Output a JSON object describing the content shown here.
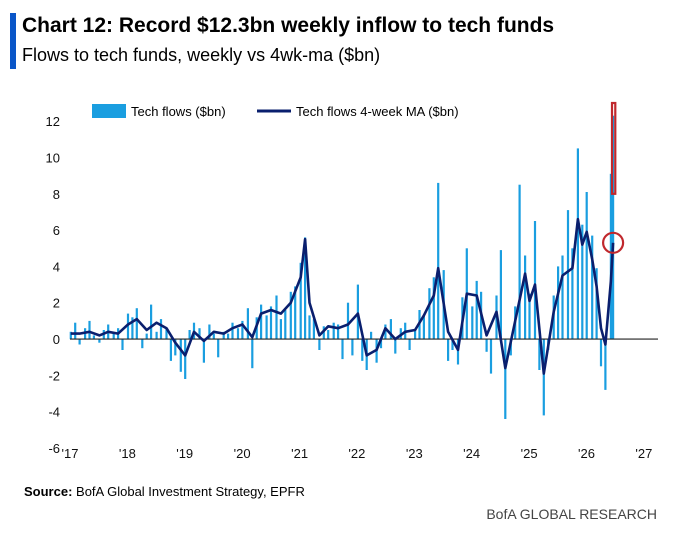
{
  "header": {
    "title": "Chart 12: Record $12.3bn weekly inflow to tech funds",
    "subtitle": "Flows to tech funds, weekly vs 4wk-ma ($bn)"
  },
  "footer": {
    "source_label": "Source:",
    "source_text": "BofA Global Investment Strategy, EPFR",
    "brand": "BofA GLOBAL RESEARCH"
  },
  "colors": {
    "bars": "#1a9ee0",
    "ma_line": "#0a1f6e",
    "highlight": "#c0282d",
    "accent": "#0a56c8"
  },
  "chart_data": {
    "type": "bar",
    "series": [
      {
        "name": "Tech flows ($bn)",
        "type": "bar",
        "points": [
          [
            "2017-01-06",
            0.4
          ],
          [
            "2017-02-03",
            0.9
          ],
          [
            "2017-03-03",
            -0.3
          ],
          [
            "2017-04-07",
            0.6
          ],
          [
            "2017-05-05",
            1.0
          ],
          [
            "2017-06-02",
            0.2
          ],
          [
            "2017-07-07",
            -0.2
          ],
          [
            "2017-08-04",
            0.5
          ],
          [
            "2017-09-01",
            0.8
          ],
          [
            "2017-10-06",
            0.3
          ],
          [
            "2017-11-03",
            0.6
          ],
          [
            "2017-12-01",
            -0.6
          ],
          [
            "2018-01-05",
            1.4
          ],
          [
            "2018-02-02",
            1.2
          ],
          [
            "2018-03-02",
            1.7
          ],
          [
            "2018-04-06",
            -0.5
          ],
          [
            "2018-05-04",
            0.3
          ],
          [
            "2018-06-01",
            1.9
          ],
          [
            "2018-07-06",
            0.4
          ],
          [
            "2018-08-03",
            1.1
          ],
          [
            "2018-09-07",
            0.6
          ],
          [
            "2018-10-05",
            -1.2
          ],
          [
            "2018-11-02",
            -0.9
          ],
          [
            "2018-12-07",
            -1.8
          ],
          [
            "2019-01-04",
            -2.2
          ],
          [
            "2019-02-01",
            0.5
          ],
          [
            "2019-03-01",
            0.9
          ],
          [
            "2019-04-05",
            0.6
          ],
          [
            "2019-05-03",
            -1.3
          ],
          [
            "2019-06-07",
            0.8
          ],
          [
            "2019-07-05",
            0.3
          ],
          [
            "2019-08-02",
            -1.0
          ],
          [
            "2019-09-06",
            0.4
          ],
          [
            "2019-10-04",
            0.3
          ],
          [
            "2019-11-01",
            0.9
          ],
          [
            "2019-12-06",
            0.6
          ],
          [
            "2020-01-03",
            1.0
          ],
          [
            "2020-02-07",
            1.7
          ],
          [
            "2020-03-06",
            -1.6
          ],
          [
            "2020-04-03",
            1.2
          ],
          [
            "2020-05-01",
            1.9
          ],
          [
            "2020-06-05",
            1.3
          ],
          [
            "2020-07-03",
            1.8
          ],
          [
            "2020-08-07",
            2.4
          ],
          [
            "2020-09-04",
            1.1
          ],
          [
            "2020-10-02",
            1.6
          ],
          [
            "2020-11-06",
            2.6
          ],
          [
            "2020-12-04",
            2.9
          ],
          [
            "2021-01-08",
            4.2
          ],
          [
            "2021-02-05",
            5.6
          ],
          [
            "2021-03-05",
            1.3
          ],
          [
            "2021-04-02",
            1.1
          ],
          [
            "2021-05-07",
            -0.6
          ],
          [
            "2021-06-04",
            0.7
          ],
          [
            "2021-07-02",
            0.5
          ],
          [
            "2021-08-06",
            0.9
          ],
          [
            "2021-09-03",
            0.8
          ],
          [
            "2021-10-01",
            -1.1
          ],
          [
            "2021-11-05",
            2.0
          ],
          [
            "2021-12-03",
            -0.9
          ],
          [
            "2022-01-07",
            3.0
          ],
          [
            "2022-02-04",
            -1.2
          ],
          [
            "2022-03-04",
            -1.7
          ],
          [
            "2022-04-01",
            0.4
          ],
          [
            "2022-05-06",
            -1.3
          ],
          [
            "2022-06-03",
            -0.5
          ],
          [
            "2022-07-01",
            0.8
          ],
          [
            "2022-08-05",
            1.1
          ],
          [
            "2022-09-02",
            -0.8
          ],
          [
            "2022-10-07",
            0.6
          ],
          [
            "2022-11-04",
            0.9
          ],
          [
            "2022-12-02",
            -0.6
          ],
          [
            "2023-01-06",
            0.5
          ],
          [
            "2023-02-03",
            1.6
          ],
          [
            "2023-03-03",
            1.3
          ],
          [
            "2023-04-07",
            2.8
          ],
          [
            "2023-05-05",
            3.4
          ],
          [
            "2023-06-02",
            8.6
          ],
          [
            "2023-07-07",
            3.8
          ],
          [
            "2023-08-04",
            -1.2
          ],
          [
            "2023-09-01",
            -0.6
          ],
          [
            "2023-10-06",
            -1.4
          ],
          [
            "2023-11-03",
            2.3
          ],
          [
            "2023-12-01",
            5.0
          ],
          [
            "2024-01-05",
            1.8
          ],
          [
            "2024-02-02",
            3.2
          ],
          [
            "2024-03-01",
            2.6
          ],
          [
            "2024-04-05",
            -0.7
          ],
          [
            "2024-05-03",
            -1.9
          ],
          [
            "2024-06-07",
            2.4
          ],
          [
            "2024-07-05",
            4.9
          ],
          [
            "2024-08-02",
            -4.4
          ],
          [
            "2024-09-06",
            -0.9
          ],
          [
            "2024-10-04",
            1.8
          ],
          [
            "2024-11-01",
            8.5
          ],
          [
            "2024-12-06",
            4.6
          ],
          [
            "2025-01-03",
            2.5
          ],
          [
            "2025-02-07",
            6.5
          ],
          [
            "2025-03-07",
            -1.7
          ],
          [
            "2025-04-04",
            -4.2
          ],
          [
            "2025-05-02",
            -0.6
          ],
          [
            "2025-06-06",
            2.4
          ],
          [
            "2025-07-04",
            4.0
          ],
          [
            "2025-08-01",
            4.6
          ],
          [
            "2025-09-05",
            7.1
          ],
          [
            "2025-10-03",
            5.0
          ],
          [
            "2025-11-07",
            10.5
          ],
          [
            "2025-12-05",
            6.3
          ],
          [
            "2026-01-02",
            8.1
          ],
          [
            "2026-02-06",
            5.7
          ],
          [
            "2026-03-06",
            3.9
          ],
          [
            "2026-04-03",
            -1.5
          ],
          [
            "2026-05-01",
            -2.8
          ],
          [
            "2026-06-05",
            9.1
          ],
          [
            "2026-06-19",
            12.3
          ]
        ]
      },
      {
        "name": "Tech flows 4-week MA ($bn)",
        "type": "line",
        "points": [
          [
            "2017-01-06",
            0.3
          ],
          [
            "2017-03-03",
            0.3
          ],
          [
            "2017-05-05",
            0.4
          ],
          [
            "2017-07-07",
            0.2
          ],
          [
            "2017-09-01",
            0.4
          ],
          [
            "2017-11-03",
            0.3
          ],
          [
            "2018-01-05",
            0.8
          ],
          [
            "2018-03-02",
            1.1
          ],
          [
            "2018-05-04",
            0.5
          ],
          [
            "2018-07-06",
            0.9
          ],
          [
            "2018-09-07",
            0.6
          ],
          [
            "2018-11-02",
            -0.2
          ],
          [
            "2019-01-04",
            -0.9
          ],
          [
            "2019-03-01",
            0.4
          ],
          [
            "2019-05-03",
            -0.1
          ],
          [
            "2019-07-05",
            0.4
          ],
          [
            "2019-09-06",
            0.3
          ],
          [
            "2019-11-01",
            0.6
          ],
          [
            "2020-01-03",
            0.8
          ],
          [
            "2020-03-06",
            0.1
          ],
          [
            "2020-05-01",
            1.4
          ],
          [
            "2020-07-03",
            1.6
          ],
          [
            "2020-09-04",
            1.4
          ],
          [
            "2020-11-06",
            2.0
          ],
          [
            "2021-01-08",
            3.4
          ],
          [
            "2021-02-05",
            5.5
          ],
          [
            "2021-03-05",
            2.0
          ],
          [
            "2021-05-07",
            0.2
          ],
          [
            "2021-07-02",
            0.7
          ],
          [
            "2021-09-03",
            0.6
          ],
          [
            "2021-11-05",
            0.8
          ],
          [
            "2022-01-07",
            1.4
          ],
          [
            "2022-03-04",
            -0.9
          ],
          [
            "2022-05-06",
            -0.6
          ],
          [
            "2022-07-01",
            0.6
          ],
          [
            "2022-09-02",
            0.0
          ],
          [
            "2022-11-04",
            0.4
          ],
          [
            "2023-01-06",
            0.5
          ],
          [
            "2023-03-03",
            1.3
          ],
          [
            "2023-05-05",
            2.4
          ],
          [
            "2023-06-02",
            3.9
          ],
          [
            "2023-08-04",
            0.4
          ],
          [
            "2023-10-06",
            -0.6
          ],
          [
            "2023-12-01",
            2.5
          ],
          [
            "2024-02-02",
            2.4
          ],
          [
            "2024-04-05",
            0.2
          ],
          [
            "2024-06-07",
            1.5
          ],
          [
            "2024-08-02",
            -1.6
          ],
          [
            "2024-10-04",
            1.0
          ],
          [
            "2024-12-06",
            3.6
          ],
          [
            "2025-01-03",
            2.1
          ],
          [
            "2025-02-07",
            3.0
          ],
          [
            "2025-04-04",
            -1.9
          ],
          [
            "2025-06-06",
            1.5
          ],
          [
            "2025-08-01",
            3.5
          ],
          [
            "2025-10-03",
            3.9
          ],
          [
            "2025-11-07",
            6.6
          ],
          [
            "2025-12-05",
            5.2
          ],
          [
            "2026-01-02",
            5.9
          ],
          [
            "2026-02-06",
            4.4
          ],
          [
            "2026-03-06",
            2.9
          ],
          [
            "2026-04-03",
            0.6
          ],
          [
            "2026-05-01",
            -0.3
          ],
          [
            "2026-06-05",
            3.2
          ],
          [
            "2026-06-19",
            5.3
          ]
        ]
      }
    ],
    "x_ticks": [
      "'17",
      "'18",
      "'19",
      "'20",
      "'21",
      "'22",
      "'23",
      "'24",
      "'25",
      "'26",
      "'27"
    ],
    "x_tick_dates": [
      "2017-01-01",
      "2018-01-01",
      "2019-01-01",
      "2020-01-01",
      "2021-01-01",
      "2022-01-01",
      "2023-01-01",
      "2024-01-01",
      "2025-01-01",
      "2026-01-01",
      "2027-01-01"
    ],
    "y_ticks": [
      12,
      10,
      8,
      6,
      4,
      2,
      0,
      -2,
      -4,
      -6
    ],
    "ylim": [
      -6,
      13
    ],
    "xlim": [
      "2017-01-01",
      "2027-04-01"
    ],
    "grid": false,
    "legend_position": "top-left",
    "highlights": [
      {
        "kind": "rectangle",
        "around": "Tech flows ($bn)",
        "x_from": "2026-06-12",
        "x_to": "2026-07-03",
        "y_from": 8.0,
        "y_to": 13.0
      },
      {
        "kind": "circle",
        "around": "Tech flows 4-week MA ($bn)",
        "x": "2026-06-19",
        "y": 5.3
      }
    ]
  }
}
